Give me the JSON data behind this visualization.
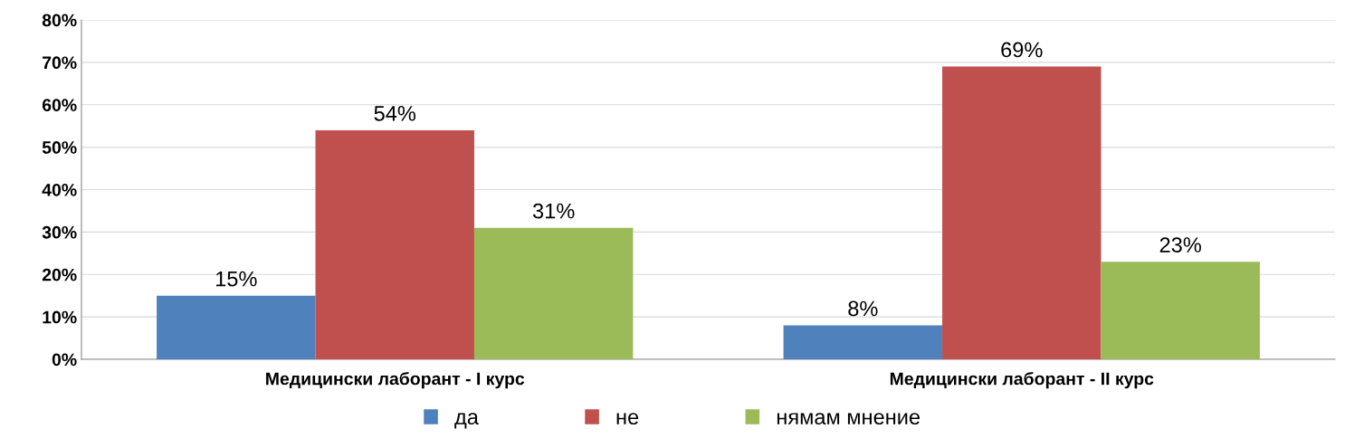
{
  "chart_data": {
    "type": "bar",
    "categories": [
      "Медицински лаборант - I курс",
      "Медицински лаборант - II курс"
    ],
    "series": [
      {
        "name": "да",
        "color": "#4f81bd",
        "values": [
          15,
          8
        ],
        "value_labels": [
          "15%",
          "8%"
        ]
      },
      {
        "name": "не",
        "color": "#c0504d",
        "values": [
          54,
          69
        ],
        "value_labels": [
          "54%",
          "69%"
        ]
      },
      {
        "name": "нямам мнение",
        "color": "#9bbb59",
        "values": [
          31,
          23
        ],
        "value_labels": [
          "31%",
          "23%"
        ]
      }
    ],
    "ylim": [
      0,
      80
    ],
    "yticks": [
      {
        "value": 0,
        "label": "0%"
      },
      {
        "value": 10,
        "label": "10%"
      },
      {
        "value": 20,
        "label": "20%"
      },
      {
        "value": 30,
        "label": "30%"
      },
      {
        "value": 40,
        "label": "40%"
      },
      {
        "value": 50,
        "label": "50%"
      },
      {
        "value": 60,
        "label": "60%"
      },
      {
        "value": 70,
        "label": "70%"
      },
      {
        "value": 80,
        "label": "80%"
      }
    ],
    "grid": "y",
    "legend": "bottom"
  }
}
